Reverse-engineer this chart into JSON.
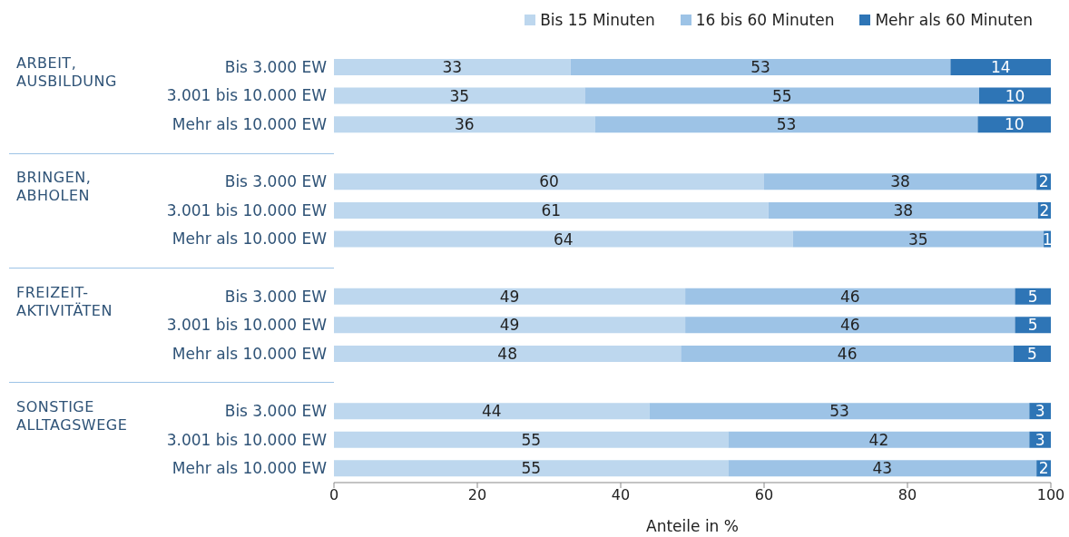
{
  "chart_data": {
    "type": "bar",
    "orientation": "horizontal",
    "stacked": true,
    "legend": "top right",
    "grid": false,
    "xlabel": "Anteile in %",
    "xlim": [
      0,
      100
    ],
    "xticks": [
      0,
      20,
      40,
      60,
      80,
      100
    ],
    "categories": [
      "Bis 3.000 EW",
      "3.001 bis 10.000 EW",
      "Mehr als 10.000 EW",
      "Bis 3.000 EW",
      "3.001 bis 10.000 EW",
      "Mehr als 10.000 EW",
      "Bis 3.000 EW",
      "3.001 bis 10.000 EW",
      "Mehr als 10.000 EW",
      "Bis 3.000 EW",
      "3.001 bis 10.000 EW",
      "Mehr als 10.000 EW"
    ],
    "annotations": [
      "ARBEIT, AUSBILDUNG",
      "BRINGEN, ABHOLEN",
      "FREIZEIT-AKTIVITÄTEN",
      "SONSTIGE ALLTAGSWEGE"
    ],
    "series": [
      {
        "name": "Bis 15 Minuten",
        "color": "#bdd7ee",
        "values": [
          33,
          35,
          36.4,
          60,
          60.6,
          64,
          49,
          49,
          48.4,
          44,
          55,
          55
        ],
        "value_labels": [
          "33",
          "35",
          "36",
          "60",
          "61",
          "64",
          "49",
          "49",
          "48",
          "44",
          "55",
          "55"
        ]
      },
      {
        "name": "16 bis 60 Minuten",
        "color": "#9dc3e6",
        "values": [
          53,
          55,
          53.4,
          38,
          37.6,
          35,
          46,
          46,
          46.4,
          53,
          42,
          43
        ],
        "value_labels": [
          "53",
          "55",
          "53",
          "38",
          "38",
          "35",
          "46",
          "46",
          "46",
          "53",
          "42",
          "43"
        ]
      },
      {
        "name": "Mehr als 60 Minuten",
        "color": "#2e75b6",
        "values": [
          14,
          10,
          10.2,
          2,
          1.8,
          1,
          5,
          5,
          5.2,
          3,
          3,
          2
        ],
        "value_labels": [
          "14",
          "10",
          "10",
          "2",
          "2",
          "1",
          "5",
          "5",
          "5",
          "3",
          "3",
          "2"
        ]
      }
    ]
  }
}
